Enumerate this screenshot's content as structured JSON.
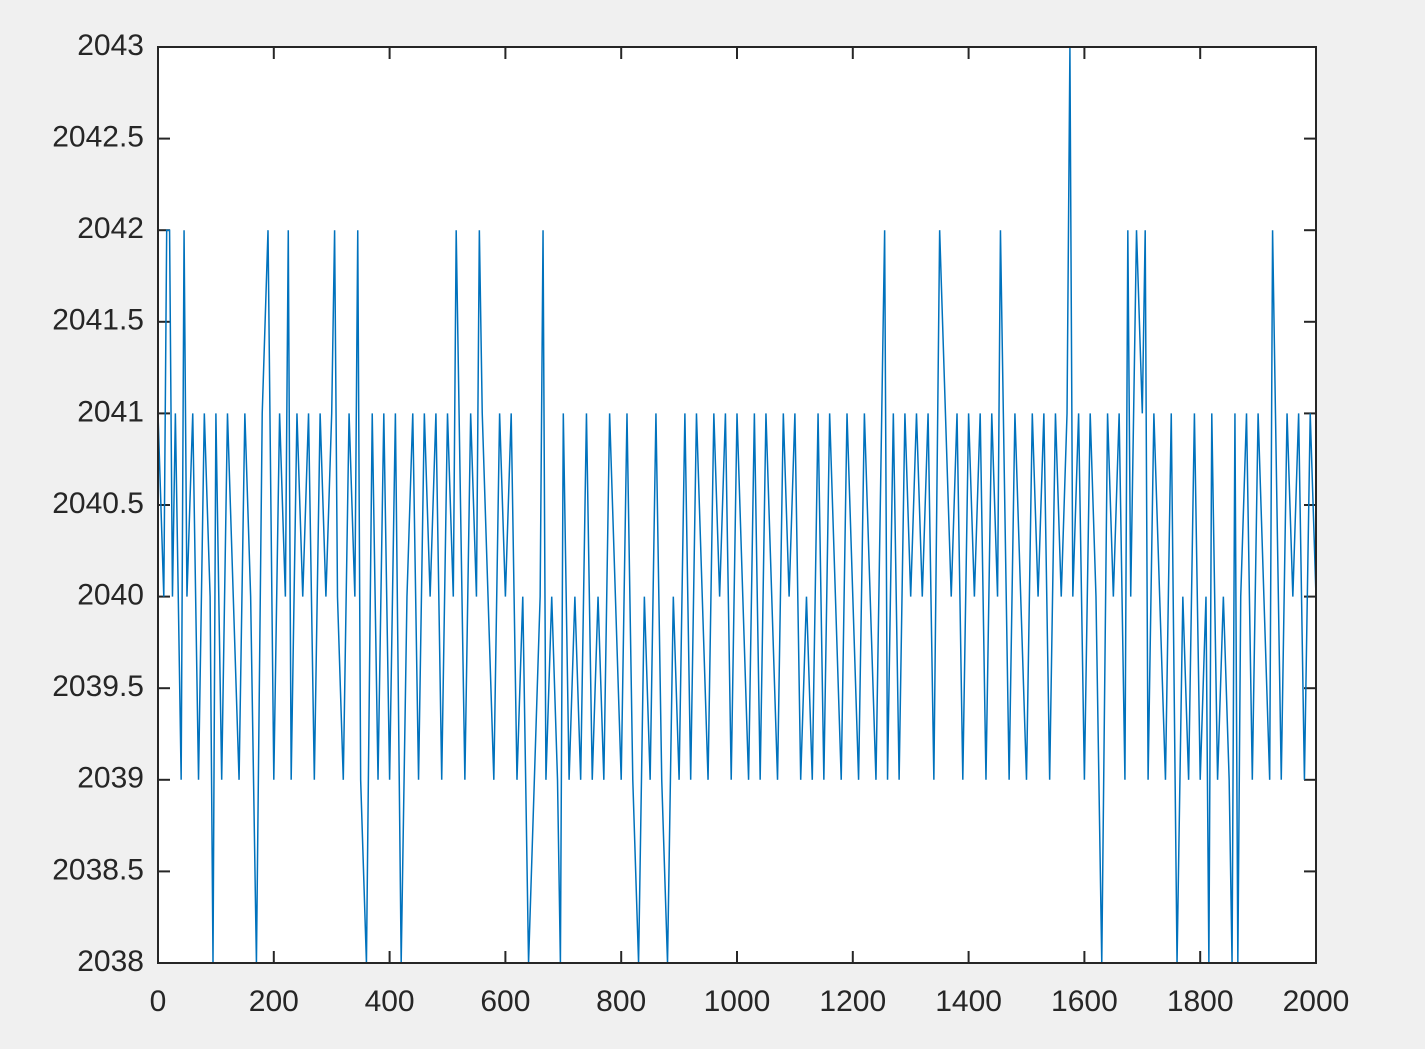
{
  "chart_data": {
    "type": "line",
    "x": [
      0,
      10,
      15,
      20,
      25,
      30,
      40,
      45,
      50,
      60,
      70,
      80,
      90,
      95,
      100,
      110,
      120,
      130,
      140,
      150,
      160,
      170,
      180,
      190,
      200,
      210,
      220,
      225,
      230,
      240,
      250,
      260,
      270,
      280,
      290,
      300,
      305,
      310,
      320,
      330,
      340,
      345,
      350,
      360,
      370,
      380,
      390,
      400,
      410,
      420,
      430,
      440,
      450,
      460,
      470,
      480,
      490,
      500,
      510,
      515,
      520,
      530,
      540,
      550,
      555,
      560,
      570,
      580,
      590,
      600,
      610,
      620,
      630,
      640,
      650,
      660,
      665,
      670,
      680,
      690,
      695,
      700,
      710,
      720,
      730,
      740,
      750,
      760,
      770,
      780,
      790,
      800,
      810,
      820,
      830,
      840,
      850,
      860,
      870,
      880,
      890,
      900,
      910,
      920,
      930,
      940,
      950,
      960,
      970,
      980,
      990,
      1000,
      1010,
      1020,
      1030,
      1040,
      1050,
      1060,
      1070,
      1080,
      1090,
      1100,
      1110,
      1120,
      1130,
      1140,
      1150,
      1160,
      1170,
      1180,
      1190,
      1200,
      1210,
      1220,
      1230,
      1240,
      1250,
      1255,
      1260,
      1270,
      1280,
      1290,
      1300,
      1310,
      1320,
      1330,
      1340,
      1350,
      1360,
      1370,
      1380,
      1390,
      1400,
      1410,
      1420,
      1430,
      1440,
      1450,
      1455,
      1460,
      1470,
      1480,
      1490,
      1500,
      1510,
      1520,
      1530,
      1540,
      1550,
      1560,
      1570,
      1575,
      1580,
      1590,
      1600,
      1610,
      1620,
      1630,
      1640,
      1650,
      1660,
      1670,
      1675,
      1680,
      1690,
      1700,
      1705,
      1710,
      1720,
      1730,
      1740,
      1750,
      1760,
      1770,
      1780,
      1790,
      1800,
      1810,
      1815,
      1820,
      1830,
      1840,
      1850,
      1855,
      1860,
      1865,
      1870,
      1880,
      1890,
      1900,
      1910,
      1920,
      1925,
      1930,
      1940,
      1950,
      1960,
      1970,
      1980,
      1990,
      2000
    ],
    "series": [
      {
        "color": "#0072bd",
        "values": [
          2041,
          2040,
          2042,
          2042,
          2040,
          2041,
          2039,
          2042,
          2040,
          2041,
          2039,
          2041,
          2040,
          2038,
          2041,
          2039,
          2041,
          2040,
          2039,
          2041,
          2040,
          2038,
          2041,
          2042,
          2039,
          2041,
          2040,
          2042,
          2039,
          2041,
          2040,
          2041,
          2039,
          2041,
          2040,
          2041,
          2042,
          2040,
          2039,
          2041,
          2040,
          2042,
          2039,
          2038,
          2041,
          2039,
          2041,
          2039,
          2041,
          2038,
          2040,
          2041,
          2039,
          2041,
          2040,
          2041,
          2039,
          2041,
          2040,
          2042,
          2041,
          2039,
          2041,
          2040,
          2042,
          2041,
          2040,
          2039,
          2041,
          2040,
          2041,
          2039,
          2040,
          2038,
          2039,
          2040,
          2042,
          2039,
          2040,
          2039,
          2038,
          2041,
          2039,
          2040,
          2039,
          2041,
          2039,
          2040,
          2039,
          2041,
          2040,
          2039,
          2041,
          2039,
          2038,
          2040,
          2039,
          2041,
          2039,
          2038,
          2040,
          2039,
          2041,
          2039,
          2041,
          2040,
          2039,
          2041,
          2040,
          2041,
          2039,
          2041,
          2040,
          2039,
          2041,
          2039,
          2041,
          2040,
          2039,
          2041,
          2040,
          2041,
          2039,
          2040,
          2039,
          2041,
          2039,
          2041,
          2040,
          2039,
          2041,
          2040,
          2039,
          2041,
          2040,
          2039,
          2041,
          2042,
          2039,
          2041,
          2039,
          2041,
          2040,
          2041,
          2040,
          2041,
          2039,
          2042,
          2041,
          2040,
          2041,
          2039,
          2041,
          2040,
          2041,
          2039,
          2041,
          2040,
          2042,
          2041,
          2039,
          2041,
          2040,
          2039,
          2041,
          2040,
          2041,
          2039,
          2041,
          2040,
          2041,
          2043,
          2040,
          2041,
          2039,
          2041,
          2040,
          2038,
          2041,
          2040,
          2041,
          2039,
          2042,
          2040,
          2042,
          2041,
          2042,
          2039,
          2041,
          2040,
          2039,
          2041,
          2038,
          2040,
          2039,
          2041,
          2039,
          2040,
          2038,
          2041,
          2039,
          2040,
          2039,
          2038,
          2041,
          2038,
          2040,
          2041,
          2039,
          2041,
          2040,
          2039,
          2042,
          2041,
          2039,
          2041,
          2040,
          2041,
          2039,
          2041,
          2040
        ]
      }
    ],
    "xlim": [
      0,
      2000
    ],
    "xticks": [
      0,
      200,
      400,
      600,
      800,
      1000,
      1200,
      1400,
      1600,
      1800,
      2000
    ],
    "ylim": [
      2038,
      2043
    ],
    "yticks": [
      2038,
      2038.5,
      2039,
      2039.5,
      2040,
      2040.5,
      2041,
      2041.5,
      2042,
      2042.5,
      2043
    ]
  }
}
